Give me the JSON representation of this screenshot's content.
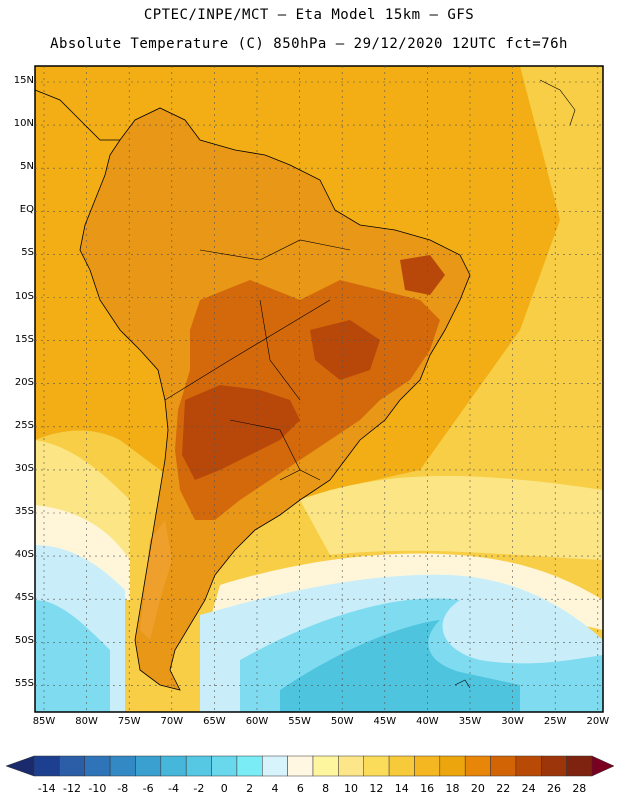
{
  "header": {
    "line1": "CPTEC/INPE/MCT –  Eta Model 15km – GFS",
    "line2": "Absolute Temperature (C) 850hPa – 29/12/2020 12UTC fct=76h"
  },
  "map": {
    "lat_labels": [
      "15N",
      "10N",
      "5N",
      "EQ",
      "5S",
      "10S",
      "15S",
      "20S",
      "25S",
      "30S",
      "35S",
      "40S",
      "45S",
      "50S",
      "55S"
    ],
    "lon_labels": [
      "85W",
      "80W",
      "75W",
      "70W",
      "65W",
      "60W",
      "55W",
      "50W",
      "45W",
      "40W",
      "35W",
      "30W",
      "25W",
      "20W"
    ]
  },
  "colorbar": {
    "labels": [
      "-14",
      "-12",
      "-10",
      "-8",
      "-6",
      "-4",
      "-2",
      "0",
      "2",
      "4",
      "6",
      "8",
      "10",
      "12",
      "14",
      "16",
      "18",
      "20",
      "22",
      "24",
      "26",
      "28"
    ],
    "colors": [
      "#1c3f8f",
      "#2b5ea6",
      "#2f74b8",
      "#3389c4",
      "#3aa0cf",
      "#46b6da",
      "#57c8e3",
      "#69d8ec",
      "#79ecf6",
      "#d7f3fb",
      "#fff7e2",
      "#fef59f",
      "#fde68a",
      "#fbdc5a",
      "#f7ca3b",
      "#f4b621",
      "#eda50e",
      "#e8860a",
      "#d36405",
      "#b84a05",
      "#9c3509",
      "#7e2310"
    ],
    "end_low": "#1a2a6c",
    "end_high": "#7a0022"
  },
  "palette": {
    "ocean_warm": "#f2ae14",
    "ocean_mid": "#f7ce45",
    "ocean_cool": "#fbe585",
    "cream": "#fff6da",
    "cyan_light": "#c9eef9",
    "cyan": "#7fdcf0",
    "cyan_deep": "#4fc4de",
    "land_warm": "#e99717",
    "land_hot": "#d4690b",
    "land_hotter": "#b8480a",
    "andes_cool": "#ee9f2c"
  }
}
